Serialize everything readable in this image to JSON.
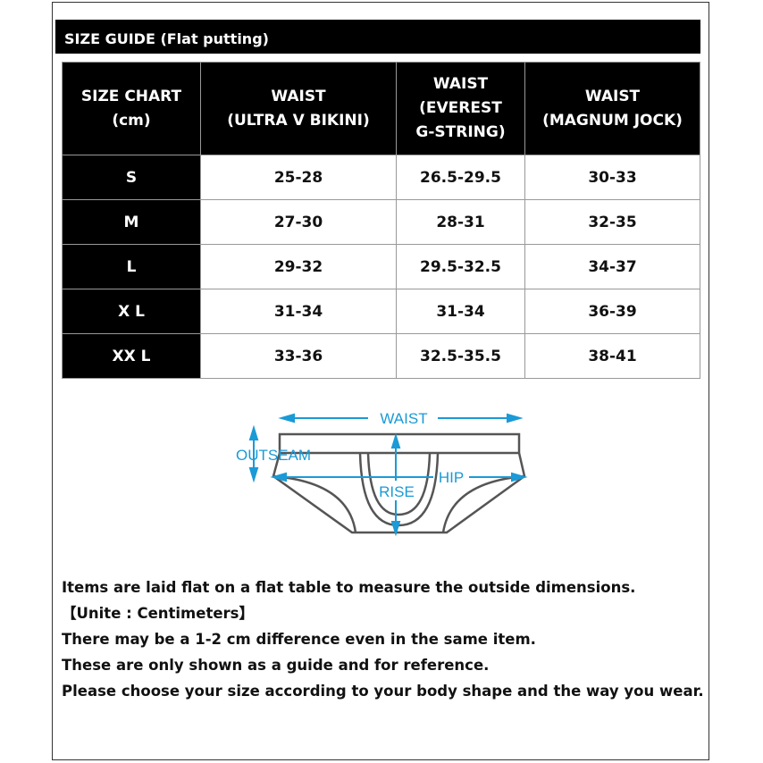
{
  "title": "SIZE GUIDE (Flat putting)",
  "table": {
    "headers": [
      [
        "SIZE CHART",
        "(cm)"
      ],
      [
        "WAIST",
        "(ULTRA V BIKINI)"
      ],
      [
        "WAIST",
        "(EVEREST",
        "G-STRING)"
      ],
      [
        "WAIST",
        "(MAGNUM JOCK)"
      ]
    ],
    "rows": [
      [
        "S",
        "25-28",
        "26.5-29.5",
        "30-33"
      ],
      [
        "M",
        "27-30",
        "28-31",
        "32-35"
      ],
      [
        "L",
        "29-32",
        "29.5-32.5",
        "34-37"
      ],
      [
        "X L",
        "31-34",
        "31-34",
        "36-39"
      ],
      [
        "XX L",
        "33-36",
        "32.5-35.5",
        "38-41"
      ]
    ]
  },
  "diagram": {
    "waist": "WAIST",
    "outseam": "OUTSEAM",
    "hip": "HIP",
    "rise": "RISE",
    "accent": "#1a9ad6",
    "outline": "#555555"
  },
  "notes": [
    "Items are laid flat on a flat table to measure the outside dimensions.",
    "【Unite : Centimeters】",
    "There may be a 1-2 cm difference even in the same item.",
    "These are only shown as a guide and for reference.",
    "Please choose your size according to your body shape and the way you wear."
  ]
}
